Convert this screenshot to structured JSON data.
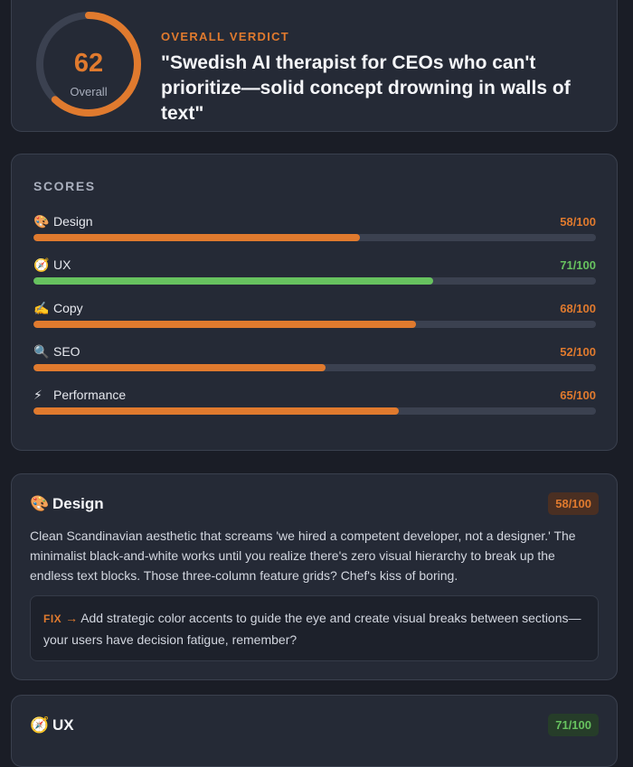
{
  "verdict": {
    "score": "62",
    "score_value": 62,
    "score_label": "Overall",
    "kicker": "OVERALL VERDICT",
    "quote": "\"Swedish AI therapist for CEOs who can't prioritize—solid concept drowning in walls of text\""
  },
  "scores": {
    "title": "SCORES",
    "items": [
      {
        "icon": "palette-icon",
        "emoji": "🎨",
        "label": "Design",
        "value_text": "58/100",
        "value": 58,
        "color": "#e07a2e"
      },
      {
        "icon": "compass-icon",
        "emoji": "🧭",
        "label": "UX",
        "value_text": "71/100",
        "value": 71,
        "color": "#67c25f"
      },
      {
        "icon": "writing-hand-icon",
        "emoji": "✍️",
        "label": "Copy",
        "value_text": "68/100",
        "value": 68,
        "color": "#e07a2e"
      },
      {
        "icon": "magnifier-icon",
        "emoji": "🔍",
        "label": "SEO",
        "value_text": "52/100",
        "value": 52,
        "color": "#e07a2e"
      },
      {
        "icon": "lightning-icon",
        "emoji": "⚡",
        "label": "Performance",
        "value_text": "65/100",
        "value": 65,
        "color": "#e07a2e"
      }
    ]
  },
  "details": {
    "design": {
      "emoji": "🎨",
      "title": "Design",
      "badge": "58/100",
      "body": "Clean Scandinavian aesthetic that screams 'we hired a competent developer, not a designer.' The minimalist black-and-white works until you realize there's zero visual hierarchy to break up the endless text blocks. Those three-column feature grids? Chef's kiss of boring.",
      "fix_label": "FIX",
      "fix_arrow": "→",
      "fix_text": "Add strategic color accents to guide the eye and create visual breaks between sections—your users have decision fatigue, remember?"
    },
    "ux": {
      "emoji": "🧭",
      "title": "UX",
      "badge": "71/100"
    }
  },
  "colors": {
    "accent_orange": "#e07a2e",
    "accent_green": "#67c25f",
    "background": "#1a1d26",
    "card": "#252a36"
  }
}
